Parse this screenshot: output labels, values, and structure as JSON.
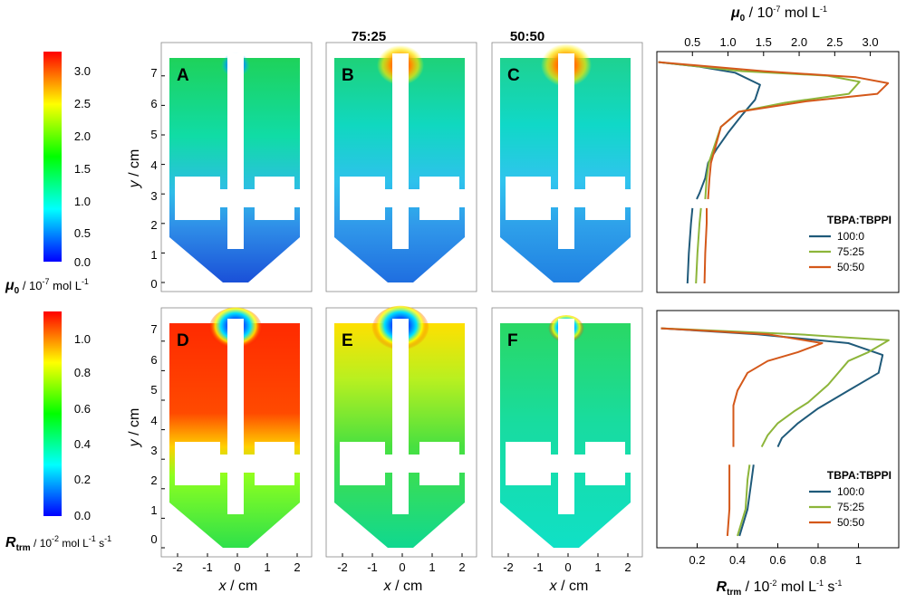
{
  "headers": {
    "col2": "75:25",
    "col3": "50:50"
  },
  "panel_letters": [
    "A",
    "B",
    "C",
    "D",
    "E",
    "F"
  ],
  "colorbars": [
    {
      "label_sym": "μ",
      "label_sub": "0",
      "label_rest": " / 10",
      "label_sup": "-7",
      "label_end": " mol L",
      "label_sup2": "-1",
      "label_end2": "",
      "ticks": [
        "3.0",
        "2.5",
        "2.0",
        "1.5",
        "1.0",
        "0.5",
        "0.0"
      ]
    },
    {
      "label_sym": "R",
      "label_sub": "trm",
      "label_rest": " / 10",
      "label_sup": "-2",
      "label_end": " mol L",
      "label_sup2": "-1",
      "label_end2": " s",
      "ticks": [
        "1.0",
        "0.8",
        "0.6",
        "0.4",
        "0.2",
        "0.0"
      ]
    }
  ],
  "map_axes": {
    "ylabel_var": "y",
    "ylabel_unit": " / cm",
    "xlabel_var": "x",
    "xlabel_unit": " / cm",
    "yticks": [
      "0",
      "1",
      "2",
      "3",
      "4",
      "5",
      "6",
      "7"
    ],
    "xticks": [
      "-2",
      "-1",
      "0",
      "1",
      "2"
    ]
  },
  "colors": {
    "series": [
      "#1f5a7a",
      "#8db53a",
      "#d4581a"
    ],
    "rainbow": [
      "#0000ff",
      "#00ffff",
      "#00ff00",
      "#ffff00",
      "#ff0000"
    ]
  },
  "chart_data": [
    {
      "type": "line",
      "title": "",
      "top_axis_label": {
        "sym": "μ",
        "sub": "0",
        "rest": " / 10",
        "sup": "-7",
        "end": " mol L",
        "sup2": "-1"
      },
      "xticks": [
        "0.5",
        "1.0",
        "1.5",
        "2.0",
        "2.5",
        "3.0"
      ],
      "xlim": [
        0.0,
        3.4
      ],
      "ylim": [
        -0.3,
        7.7
      ],
      "legend_title": "TBPA:TBPPI",
      "legend_position": "bottom-right",
      "series": [
        {
          "name": "100:0",
          "segments": [
            [
              [
                0.02,
                7.35
              ],
              [
                0.6,
                7.2
              ],
              [
                1.1,
                7.0
              ],
              [
                1.45,
                6.6
              ],
              [
                1.38,
                6.1
              ],
              [
                1.2,
                5.6
              ],
              [
                1.0,
                5.0
              ],
              [
                0.85,
                4.5
              ],
              [
                0.72,
                4.0
              ],
              [
                0.68,
                3.5
              ],
              [
                0.6,
                3.0
              ],
              [
                0.56,
                2.8
              ]
            ],
            [
              [
                0.5,
                2.5
              ],
              [
                0.48,
                2.0
              ],
              [
                0.45,
                1.0
              ],
              [
                0.43,
                0.0
              ]
            ]
          ]
        },
        {
          "name": "75:25",
          "segments": [
            [
              [
                0.02,
                7.35
              ],
              [
                1.2,
                7.05
              ],
              [
                2.4,
                6.9
              ],
              [
                2.85,
                6.7
              ],
              [
                2.7,
                6.3
              ],
              [
                1.8,
                6.0
              ],
              [
                1.15,
                5.7
              ],
              [
                0.9,
                5.2
              ],
              [
                0.8,
                4.5
              ],
              [
                0.73,
                4.0
              ],
              [
                0.7,
                3.5
              ],
              [
                0.68,
                2.8
              ]
            ],
            [
              [
                0.62,
                2.5
              ],
              [
                0.6,
                2.0
              ],
              [
                0.57,
                1.0
              ],
              [
                0.55,
                0.0
              ]
            ]
          ]
        },
        {
          "name": "50:50",
          "segments": [
            [
              [
                0.02,
                7.35
              ],
              [
                1.5,
                7.05
              ],
              [
                2.8,
                6.85
              ],
              [
                3.25,
                6.65
              ],
              [
                3.1,
                6.3
              ],
              [
                2.1,
                6.05
              ],
              [
                1.15,
                5.7
              ],
              [
                0.9,
                5.2
              ],
              [
                0.82,
                4.5
              ],
              [
                0.76,
                4.0
              ],
              [
                0.74,
                3.5
              ],
              [
                0.72,
                2.8
              ]
            ],
            [
              [
                0.7,
                2.5
              ],
              [
                0.7,
                2.0
              ],
              [
                0.68,
                1.0
              ],
              [
                0.67,
                0.0
              ]
            ]
          ]
        }
      ]
    },
    {
      "type": "line",
      "title": "",
      "bottom_axis_label": {
        "sym": "R",
        "sub": "trm",
        "rest": " / 10",
        "sup": "-2",
        "end": " mol L",
        "sup2": "-1",
        "end2": " s",
        "sup3": "-1"
      },
      "xticks": [
        "0.2",
        "0.4",
        "0.6",
        "0.8",
        "1"
      ],
      "xlim": [
        0.0,
        1.2
      ],
      "ylim": [
        -0.3,
        7.7
      ],
      "legend_title": "TBPA:TBPPI",
      "legend_position": "bottom-right",
      "series": [
        {
          "name": "100:0",
          "segments": [
            [
              [
                0.02,
                7.1
              ],
              [
                0.5,
                6.9
              ],
              [
                0.95,
                6.6
              ],
              [
                1.12,
                6.2
              ],
              [
                1.1,
                5.6
              ],
              [
                0.95,
                5.0
              ],
              [
                0.8,
                4.4
              ],
              [
                0.7,
                3.9
              ],
              [
                0.62,
                3.4
              ],
              [
                0.6,
                3.1
              ]
            ],
            [
              [
                0.48,
                2.5
              ],
              [
                0.47,
                2.0
              ],
              [
                0.45,
                1.0
              ],
              [
                0.41,
                0.1
              ]
            ]
          ]
        },
        {
          "name": "75:25",
          "segments": [
            [
              [
                0.02,
                7.1
              ],
              [
                0.7,
                6.9
              ],
              [
                1.15,
                6.7
              ],
              [
                1.05,
                6.3
              ],
              [
                0.95,
                6.0
              ],
              [
                0.85,
                5.2
              ],
              [
                0.75,
                4.6
              ],
              [
                0.68,
                4.3
              ],
              [
                0.6,
                3.9
              ],
              [
                0.55,
                3.5
              ],
              [
                0.52,
                3.1
              ]
            ],
            [
              [
                0.46,
                2.5
              ],
              [
                0.45,
                2.0
              ],
              [
                0.44,
                1.0
              ],
              [
                0.4,
                0.1
              ]
            ]
          ]
        },
        {
          "name": "50:50",
          "segments": [
            [
              [
                0.02,
                7.1
              ],
              [
                0.55,
                6.9
              ],
              [
                0.82,
                6.6
              ],
              [
                0.7,
                6.3
              ],
              [
                0.55,
                6.0
              ],
              [
                0.45,
                5.6
              ],
              [
                0.4,
                5.0
              ],
              [
                0.38,
                4.5
              ],
              [
                0.38,
                3.5
              ],
              [
                0.38,
                3.1
              ]
            ],
            [
              [
                0.36,
                2.5
              ],
              [
                0.36,
                2.0
              ],
              [
                0.36,
                1.0
              ],
              [
                0.35,
                0.1
              ]
            ]
          ]
        }
      ]
    }
  ]
}
